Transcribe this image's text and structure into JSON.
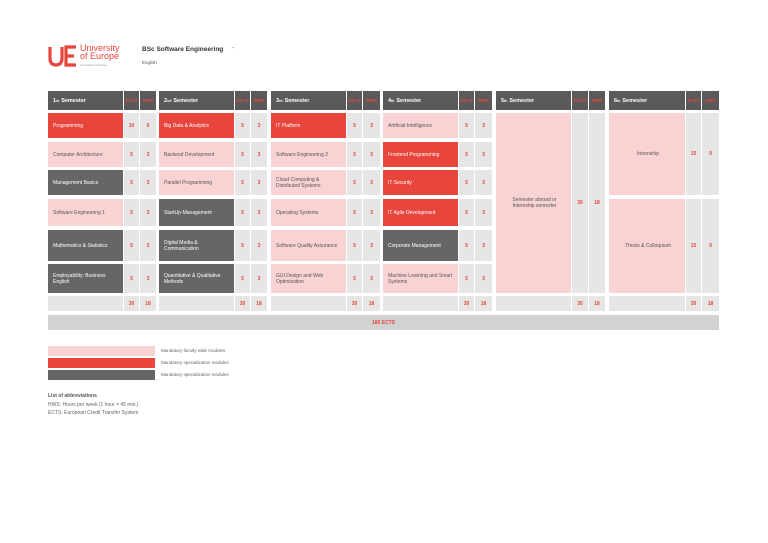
{
  "header": {
    "logo_line1": "University",
    "logo_line2": "of Europe",
    "logo_sub": "for Applied Sciences",
    "program_title": "BSc Software Engineering",
    "program_dash": "-",
    "program_language": "English"
  },
  "colors": {
    "pink": "#f9d3d3",
    "red": "#e8453c",
    "gray": "#666666",
    "light": "#e6e6e6"
  },
  "sub_headers": {
    "ects": "ECTS",
    "hws": "HWS"
  },
  "semesters": [
    {
      "num": "1",
      "sup": "st",
      "label": "Semester",
      "modules": [
        {
          "name": "Programming",
          "ects": "10",
          "hws": "6",
          "type": "red"
        },
        {
          "name": "Computer Architecture",
          "ects": "5",
          "hws": "3",
          "type": "pink"
        },
        {
          "name": "Management Basics",
          "ects": "5",
          "hws": "3",
          "type": "gray"
        },
        {
          "name": "Software Engineering 1",
          "ects": "5",
          "hws": "3",
          "type": "pink"
        },
        {
          "name": "Mathematics & Statistics",
          "ects": "5",
          "hws": "3",
          "type": "gray"
        },
        {
          "name": "Employability: Business English",
          "ects": "5",
          "hws": "3",
          "type": "gray"
        }
      ],
      "total_ects": "30",
      "total_hws": "18"
    },
    {
      "num": "2",
      "sup": "nd",
      "label": "Semester",
      "modules": [
        {
          "name": "Big Data & Analytics",
          "ects": "5",
          "hws": "3",
          "type": "red"
        },
        {
          "name": "Backend Development",
          "ects": "5",
          "hws": "3",
          "type": "pink"
        },
        {
          "name": "Parallel Programming",
          "ects": "5",
          "hws": "3",
          "type": "pink"
        },
        {
          "name": "StartUp-Management",
          "ects": "5",
          "hws": "3",
          "type": "gray"
        },
        {
          "name": "Digital Media & Communication",
          "ects": "5",
          "hws": "3",
          "type": "gray"
        },
        {
          "name": "Quantitative & Qualitative Methods",
          "ects": "5",
          "hws": "3",
          "type": "gray"
        }
      ],
      "total_ects": "30",
      "total_hws": "18"
    },
    {
      "num": "3",
      "sup": "rd",
      "label": "Semester",
      "modules": [
        {
          "name": "IT Platform",
          "ects": "5",
          "hws": "3",
          "type": "red"
        },
        {
          "name": "Software Engineering 2",
          "ects": "5",
          "hws": "3",
          "type": "pink"
        },
        {
          "name": "Cloud Computing & Distributed Systems",
          "ects": "5",
          "hws": "3",
          "type": "pink"
        },
        {
          "name": "Operating Systems",
          "ects": "5",
          "hws": "3",
          "type": "pink"
        },
        {
          "name": "Software Quality Assurance",
          "ects": "5",
          "hws": "3",
          "type": "pink"
        },
        {
          "name": "GUI Design and Web Optimization",
          "ects": "5",
          "hws": "3",
          "type": "pink"
        }
      ],
      "total_ects": "30",
      "total_hws": "18"
    },
    {
      "num": "4",
      "sup": "th",
      "label": "Semester",
      "modules": [
        {
          "name": "Artificial Intelligence",
          "ects": "5",
          "hws": "3",
          "type": "pink"
        },
        {
          "name": "Frontend Programming",
          "ects": "5",
          "hws": "3",
          "type": "red"
        },
        {
          "name": "IT Security",
          "ects": "5",
          "hws": "3",
          "type": "red"
        },
        {
          "name": "IT Agile Development",
          "ects": "5",
          "hws": "3",
          "type": "red"
        },
        {
          "name": "Corporate Management",
          "ects": "5",
          "hws": "3",
          "type": "gray"
        },
        {
          "name": "Machine Learning and Smart Systems",
          "ects": "5",
          "hws": "3",
          "type": "pink"
        }
      ],
      "total_ects": "30",
      "total_hws": "18"
    },
    {
      "num": "5",
      "sup": "th",
      "label": "Semester",
      "block": {
        "name": "Semester abroad or Internship semester",
        "ects": "30",
        "hws": "18"
      },
      "total_ects": "30",
      "total_hws": "18"
    },
    {
      "num": "6",
      "sup": "th",
      "label": "Semester",
      "blocks": [
        {
          "name": "Internship",
          "ects": "15",
          "hws": "9"
        },
        {
          "name": "Thesis & Colloquium",
          "ects": "15",
          "hws": "9"
        }
      ],
      "total_ects": "30",
      "total_hws": "18"
    }
  ],
  "grand_total": "180 ECTS",
  "legend": [
    {
      "type": "pink",
      "label": "Mandatory faculty wide modules"
    },
    {
      "type": "red",
      "label": "Mandatory specialization modules"
    },
    {
      "type": "gray",
      "label": "Mandatory specialization modules"
    }
  ],
  "abbreviations": {
    "title": "List of abbreviations",
    "lines": [
      "HWS: Hours per week (1 hour = 45 min.)",
      "ECTS: European Credit Transfer System"
    ]
  }
}
